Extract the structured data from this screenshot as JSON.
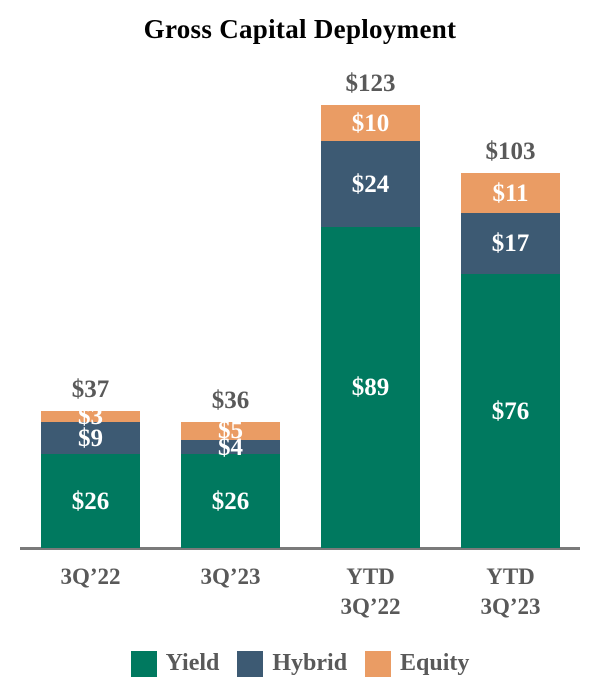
{
  "chart_data": {
    "type": "bar",
    "variant": "stacked",
    "title": "Gross Capital Deployment",
    "value_prefix": "$",
    "categories": [
      "3Q’22",
      "3Q’23",
      "YTD\n3Q’22",
      "YTD\n3Q’23"
    ],
    "series": [
      {
        "name": "Yield",
        "color": "#00795f",
        "values": [
          26,
          26,
          89,
          76
        ]
      },
      {
        "name": "Hybrid",
        "color": "#3d5a73",
        "values": [
          9,
          4,
          24,
          17
        ]
      },
      {
        "name": "Equity",
        "color": "#ea9c64",
        "values": [
          3,
          5,
          10,
          11
        ]
      }
    ],
    "totals": [
      37,
      36,
      123,
      103
    ],
    "ylim": [
      0,
      123
    ],
    "grid": false,
    "y_axis_shown": false,
    "legend_position": "bottom"
  },
  "colors": {
    "title": "#000000",
    "label": "#595959",
    "value_text": "#ffffff",
    "axis": "#7a7a7a",
    "background": "#ffffff"
  }
}
